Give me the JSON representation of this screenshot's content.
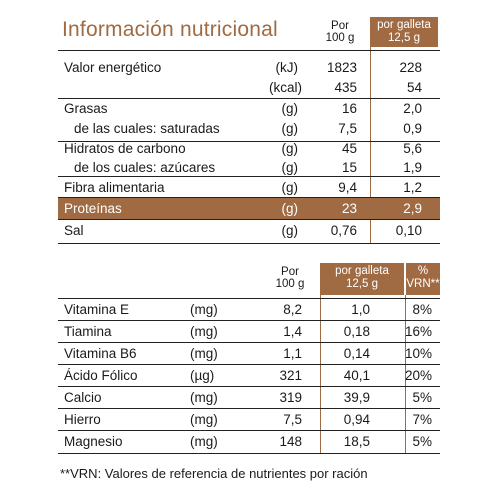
{
  "title": "Información nutricional",
  "table1": {
    "col_per100": [
      "Por",
      "100 g"
    ],
    "col_portion": [
      "por galleta",
      "12,5 g"
    ],
    "rows": [
      {
        "label": "Valor energético",
        "unit": "(kJ)",
        "v100": "1823",
        "vp": "228"
      },
      {
        "label": "",
        "unit": "(kcal)",
        "v100": "435",
        "vp": "54"
      },
      {
        "label": "Grasas",
        "unit": "(g)",
        "v100": "16",
        "vp": "2,0"
      },
      {
        "label": "de las cuales: saturadas",
        "unit": "(g)",
        "v100": "7,5",
        "vp": "0,9"
      },
      {
        "label": "Hidratos de carbono",
        "unit": "(g)",
        "v100": "45",
        "vp": "5,6"
      },
      {
        "label": "de los cuales: azúcares",
        "unit": "(g)",
        "v100": "15",
        "vp": "1,9"
      },
      {
        "label": "Fibra alimentaria",
        "unit": "(g)",
        "v100": "9,4",
        "vp": "1,2"
      },
      {
        "label": "Proteínas",
        "unit": "(g)",
        "v100": "23",
        "vp": "2,9"
      },
      {
        "label": "Sal",
        "unit": "(g)",
        "v100": "0,76",
        "vp": "0,10"
      }
    ]
  },
  "table2": {
    "col_per100": [
      "Por",
      "100 g"
    ],
    "col_portion": [
      "por galleta",
      "12,5 g"
    ],
    "col_vrn": [
      "%",
      "VRN**"
    ],
    "rows": [
      {
        "label": "Vitamina E",
        "unit": "(mg)",
        "v100": "8,2",
        "vp": "1,0",
        "vrn": "8%"
      },
      {
        "label": "Tiamina",
        "unit": "(mg)",
        "v100": "1,4",
        "vp": "0,18",
        "vrn": "16%"
      },
      {
        "label": "Vitamina B6",
        "unit": "(mg)",
        "v100": "1,1",
        "vp": "0,14",
        "vrn": "10%"
      },
      {
        "label": "Ácido Fólico",
        "unit": "(µg)",
        "v100": "321",
        "vp": "40,1",
        "vrn": "20%"
      },
      {
        "label": "Calcio",
        "unit": "(mg)",
        "v100": "319",
        "vp": "39,9",
        "vrn": "5%"
      },
      {
        "label": "Hierro",
        "unit": "(mg)",
        "v100": "7,5",
        "vp": "0,94",
        "vrn": "7%"
      },
      {
        "label": "Magnesio",
        "unit": "(mg)",
        "v100": "148",
        "vp": "18,5",
        "vrn": "5%"
      }
    ]
  },
  "footnote": "**VRN: Valores de referencia de nutrientes por ración",
  "colors": {
    "accent": "#a06a42",
    "text": "#1a1a1a"
  }
}
